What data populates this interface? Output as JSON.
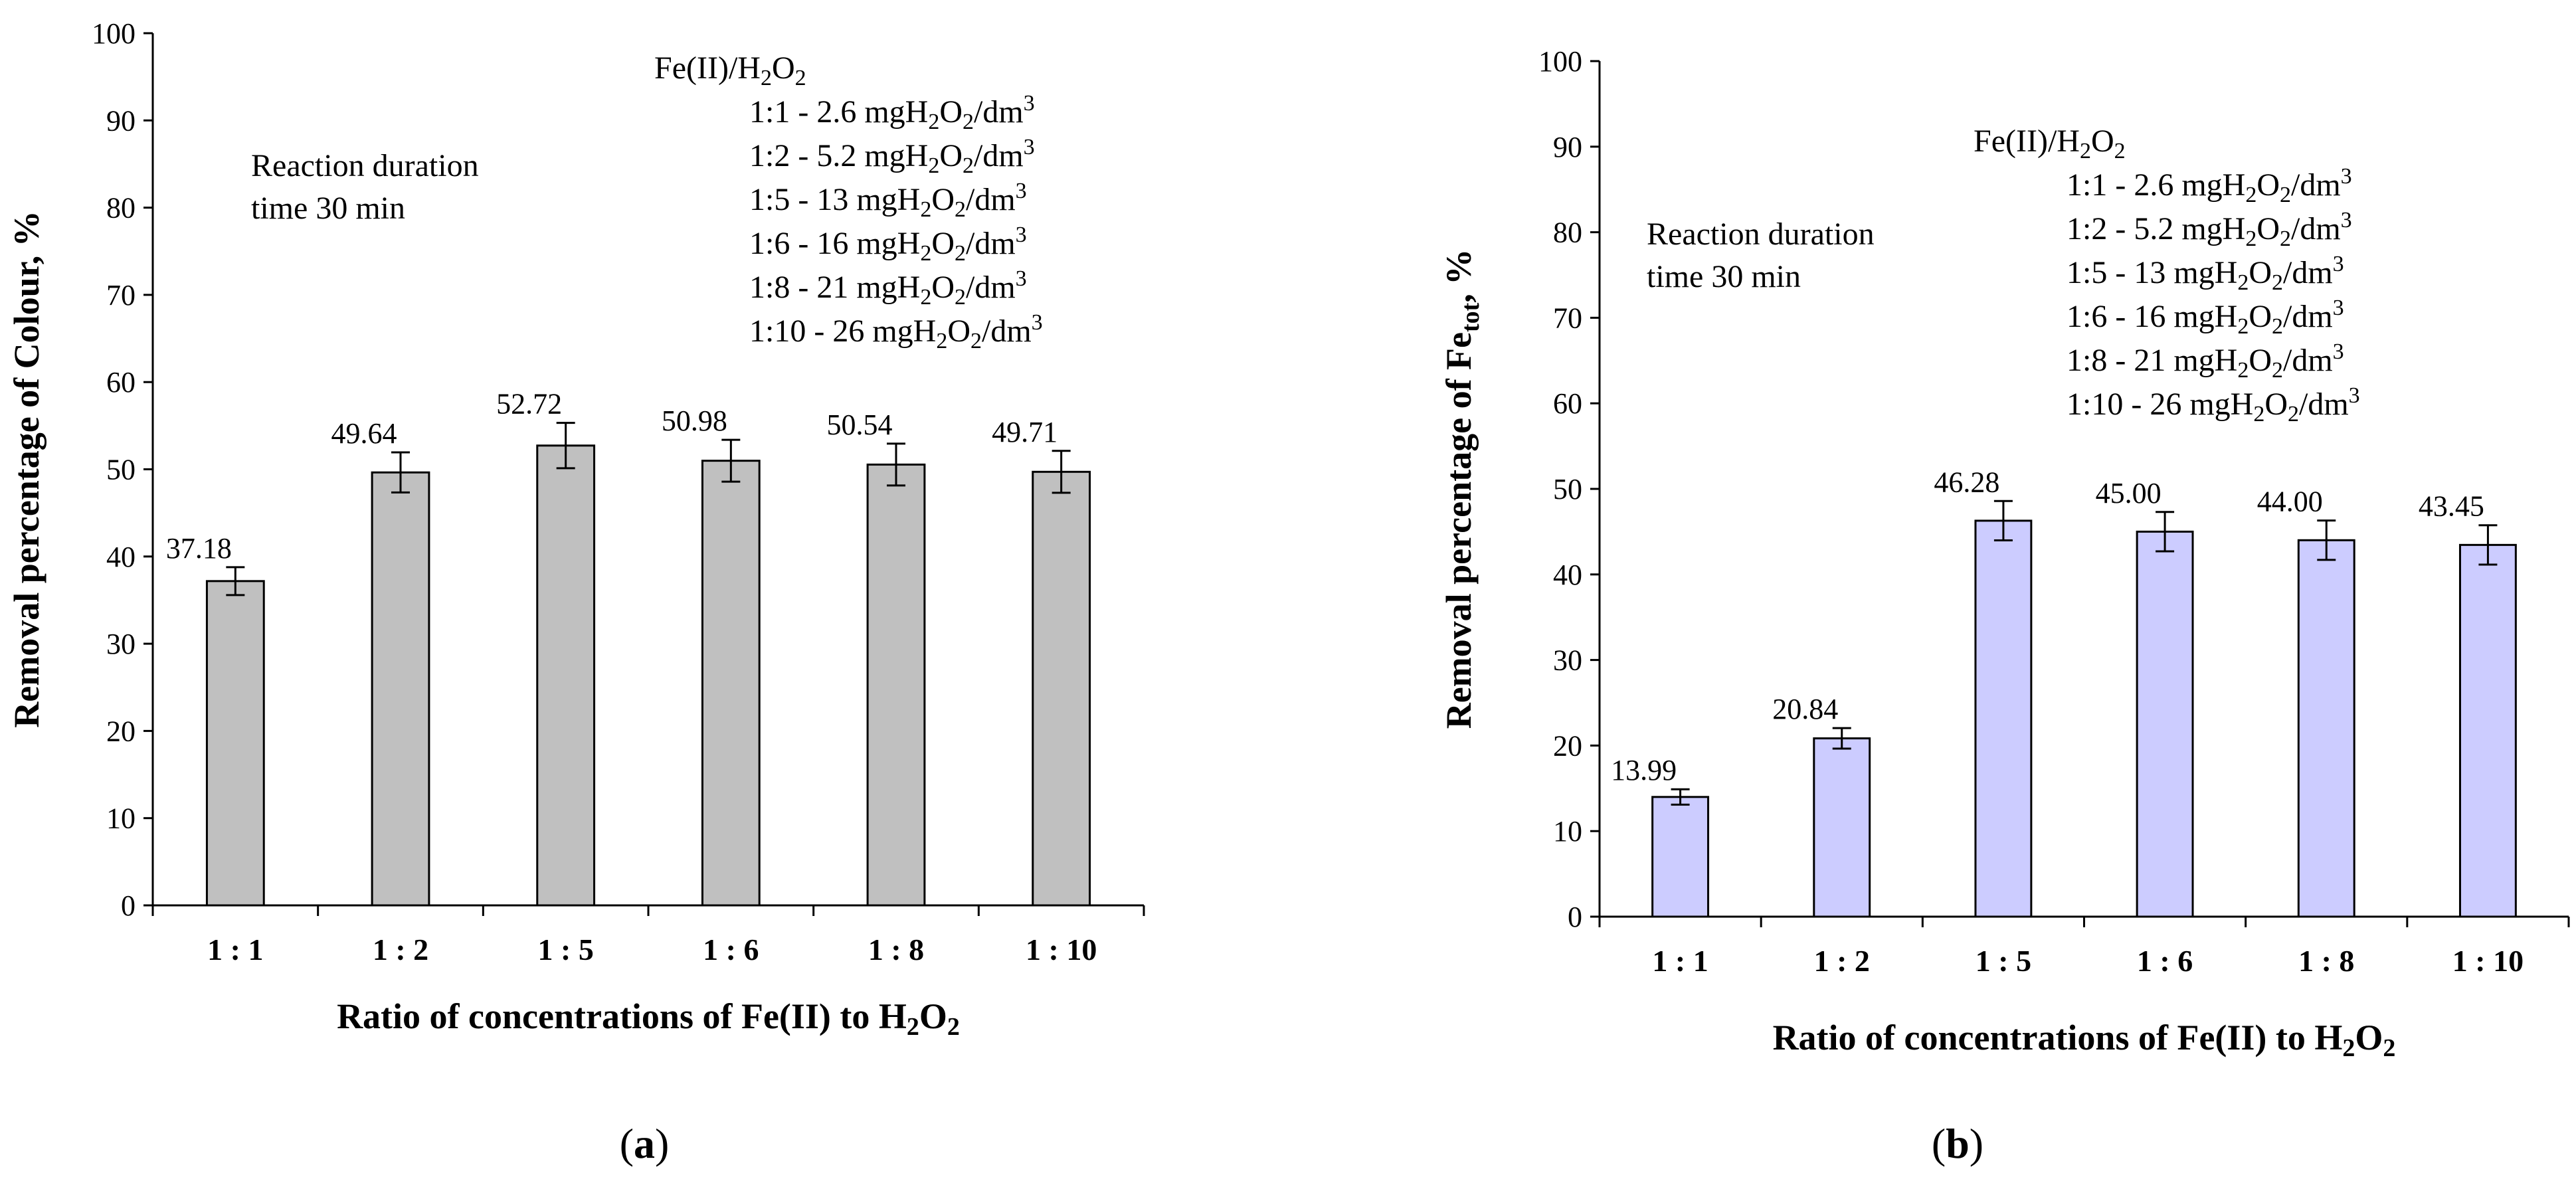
{
  "chart_data": [
    {
      "type": "bar",
      "panel_label": "(a)",
      "panel_letter": "a",
      "bar_color": "#c0c0c0",
      "categories": [
        "1 : 1",
        "1 : 2",
        "1 : 5",
        "1 : 6",
        "1 : 8",
        "1 : 10"
      ],
      "values": [
        37.18,
        49.64,
        52.72,
        50.98,
        50.54,
        49.71
      ],
      "value_labels": [
        "37.18",
        "49.64",
        "52.72",
        "50.98",
        "50.54",
        "49.71"
      ],
      "errors": [
        1.6,
        2.3,
        2.6,
        2.4,
        2.4,
        2.4
      ],
      "ylim": [
        0,
        100
      ],
      "yticks": [
        0,
        10,
        20,
        30,
        40,
        50,
        60,
        70,
        80,
        90,
        100
      ],
      "grid": false,
      "ylabel_parts": [
        "Removal percentage of  Colour,  %"
      ],
      "xlabel": "Ratio of concentrations of Fe(II) to H",
      "xlabel_sub": "2",
      "xlabel_tail": "O",
      "xlabel_sub2": "2",
      "annotation_lines": [
        "Reaction duration",
        "time 30 min"
      ],
      "legend": {
        "title_fe": "Fe(II)/H",
        "title_sub1": "2",
        "title_o": "O",
        "title_sub2": "2",
        "lines": [
          {
            "prefix": "1:1 - 2.6 mgH",
            "mid": "O",
            "unit": "/dm",
            "exp": "3"
          },
          {
            "prefix": "1:2 - 5.2 mgH",
            "mid": "O",
            "unit": "/dm",
            "exp": "3"
          },
          {
            "prefix": "1:5 - 13 mgH",
            "mid": "O",
            "unit": "/dm",
            "exp": "3"
          },
          {
            "prefix": "1:6 - 16 mgH",
            "mid": "O",
            "unit": "/dm",
            "exp": "3"
          },
          {
            "prefix": "1:8 - 21 mgH",
            "mid": "O",
            "unit": "/dm",
            "exp": "3"
          },
          {
            "prefix": "1:10 - 26 mgH",
            "mid": "O",
            "unit": "/dm",
            "exp": "3"
          }
        ],
        "sub": "2"
      }
    },
    {
      "type": "bar",
      "panel_label": "(b)",
      "panel_letter": "b",
      "bar_color": "#ccccff",
      "categories": [
        "1 : 1",
        "1 : 2",
        "1 : 5",
        "1 : 6",
        "1 : 8",
        "1 : 10"
      ],
      "values": [
        13.99,
        20.84,
        46.28,
        45.0,
        44.0,
        43.45
      ],
      "value_labels": [
        "13.99",
        "20.84",
        "46.28",
        "45.00",
        "44.00",
        "43.45"
      ],
      "errors": [
        0.9,
        1.2,
        2.3,
        2.3,
        2.3,
        2.3
      ],
      "ylim": [
        0,
        100
      ],
      "yticks": [
        0,
        10,
        20,
        30,
        40,
        50,
        60,
        70,
        80,
        90,
        100
      ],
      "grid": false,
      "ylabel_main": "Removal percentage of  Fe",
      "ylabel_sub": "tot",
      "ylabel_tail": ",  %",
      "xlabel": "Ratio of concentrations of Fe(II) to H",
      "xlabel_sub": "2",
      "xlabel_tail": "O",
      "xlabel_sub2": "2",
      "annotation_lines": [
        "Reaction duration",
        "time 30 min"
      ],
      "legend": {
        "title_fe": "Fe(II)/H",
        "title_sub1": "2",
        "title_o": "O",
        "title_sub2": "2",
        "lines": [
          {
            "prefix": "1:1 - 2.6 mgH",
            "mid": "O",
            "unit": "/dm",
            "exp": "3"
          },
          {
            "prefix": "1:2 - 5.2 mgH",
            "mid": "O",
            "unit": "/dm",
            "exp": "3"
          },
          {
            "prefix": "1:5 - 13 mgH",
            "mid": "O",
            "unit": "/dm",
            "exp": "3"
          },
          {
            "prefix": "1:6 - 16 mgH",
            "mid": "O",
            "unit": "/dm",
            "exp": "3"
          },
          {
            "prefix": "1:8 - 21 mgH",
            "mid": "O",
            "unit": "/dm",
            "exp": "3"
          },
          {
            "prefix": "1:10 - 26 mgH",
            "mid": "O",
            "unit": "/dm",
            "exp": "3"
          }
        ],
        "sub": "2"
      }
    }
  ]
}
